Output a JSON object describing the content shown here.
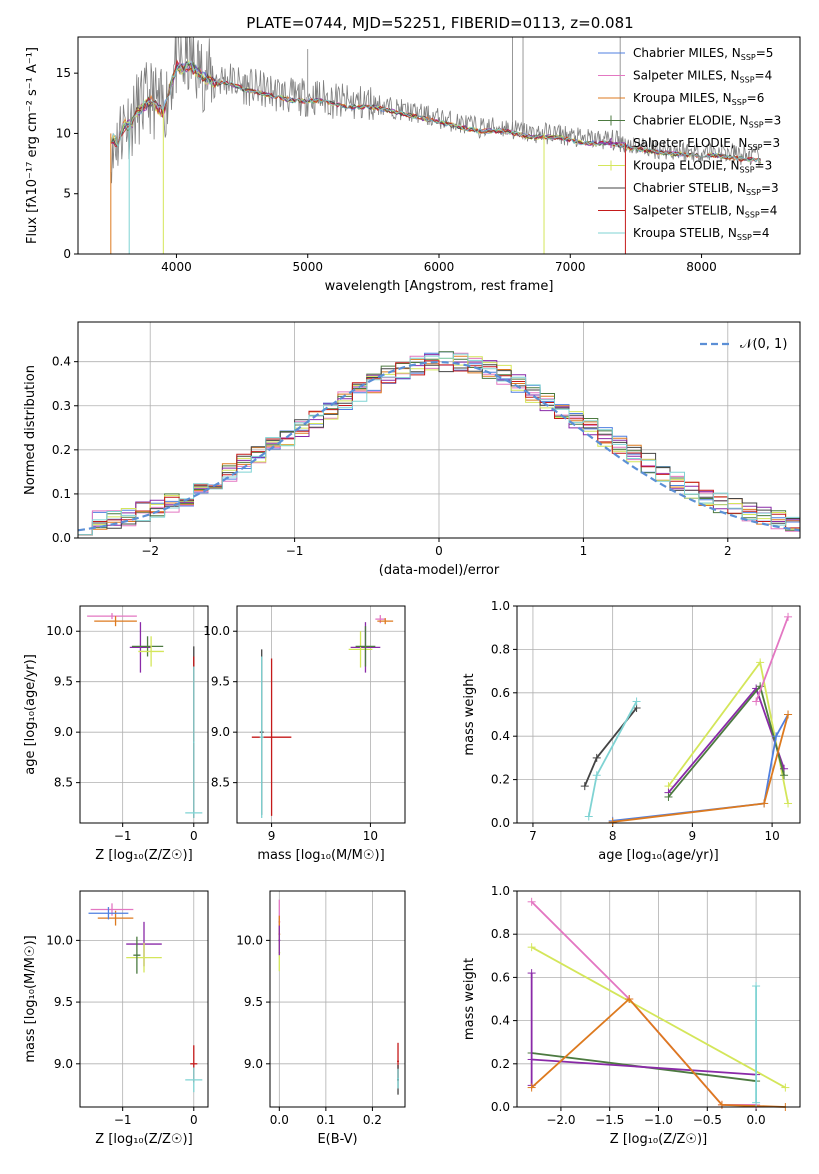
{
  "page": {
    "title": "PLATE=0744, MJD=52251, FIBERID=0113, z=0.081"
  },
  "colors": {
    "chabrier_miles": "#4f7fe0",
    "salpeter_miles": "#e377c2",
    "kroupa_miles": "#dd7a1f",
    "chabrier_elodie": "#4c7a40",
    "salpeter_elodie": "#8a2aa8",
    "kroupa_elodie": "#d4e65a",
    "chabrier_stelib": "#444444",
    "salpeter_stelib": "#c41a1a",
    "kroupa_stelib": "#7fd3d3",
    "data": "#7f7f7f",
    "normal": "#5b8fd6"
  },
  "chart_data": [
    {
      "id": "spectrum",
      "type": "line",
      "title": "PLATE=0744, MJD=52251, FIBERID=0113, z=0.081",
      "xlabel": "wavelength [Angstrom, rest frame]",
      "ylabel": "Flux [fλ10⁻¹⁷ erg cm⁻² s⁻¹ A⁻¹]",
      "xlim": [
        3250,
        8750
      ],
      "ylim": [
        0,
        18
      ],
      "xticks": [
        4000,
        5000,
        6000,
        7000,
        8000
      ],
      "yticks": [
        0,
        5,
        10,
        15
      ],
      "legend_position": "top-right",
      "legend": [
        {
          "label": "Chabrier MILES, N",
          "sub": "SSP",
          "suffix": "=5"
        },
        {
          "label": "Salpeter MILES, N",
          "sub": "SSP",
          "suffix": "=4"
        },
        {
          "label": "Kroupa MILES, N",
          "sub": "SSP",
          "suffix": "=6"
        },
        {
          "label": "Chabrier ELODIE, N",
          "sub": "SSP",
          "suffix": "=3"
        },
        {
          "label": "Salpeter ELODIE, N",
          "sub": "SSP",
          "suffix": "=3"
        },
        {
          "label": "Kroupa ELODIE, N",
          "sub": "SSP",
          "suffix": "=3"
        },
        {
          "label": "Chabrier STELIB, N",
          "sub": "SSP",
          "suffix": "=3"
        },
        {
          "label": "Salpeter STELIB, N",
          "sub": "SSP",
          "suffix": "=4"
        },
        {
          "label": "Kroupa STELIB, N",
          "sub": "SSP",
          "suffix": "=4"
        }
      ],
      "data_curve": {
        "x": [
          3500,
          3550,
          3600,
          3650,
          3700,
          3750,
          3800,
          3850,
          3900,
          3950,
          4000,
          4050,
          4100,
          4200,
          4300,
          4400,
          4500,
          4700,
          4900,
          5100,
          5300,
          5500,
          5700,
          5900,
          6100,
          6300,
          6500,
          6700,
          6900,
          7100,
          7300,
          7500,
          7700,
          7900,
          8100,
          8300,
          8500
        ],
        "y": [
          10,
          9.5,
          11,
          11,
          12,
          12.5,
          13,
          12.5,
          12,
          14,
          16,
          15.5,
          16,
          15,
          14.5,
          14.5,
          14,
          13.5,
          13,
          13,
          12.5,
          12.5,
          12,
          11.5,
          11,
          10.5,
          10.5,
          10,
          10,
          9.5,
          9.5,
          9,
          8.7,
          8.5,
          8.5,
          8.2,
          8
        ]
      }
    },
    {
      "id": "residuals",
      "type": "line",
      "xlabel": "(data-model)/error",
      "ylabel": "Normed distribution",
      "xlim": [
        -2.5,
        2.5
      ],
      "ylim": [
        0,
        0.49
      ],
      "xticks": [
        -2,
        -1,
        0,
        1,
        2
      ],
      "yticks": [
        0.0,
        0.1,
        0.2,
        0.3,
        0.4
      ],
      "legend": [
        "𝒩(0, 1)"
      ],
      "legend_position": "top-right",
      "bin_width": 0.1,
      "series": [
        {
          "name": "Chabrier MILES",
          "values": [
            0.03,
            0.04,
            0.04,
            0.05,
            0.06,
            0.07,
            0.08,
            0.09,
            0.11,
            0.13,
            0.15,
            0.17,
            0.19,
            0.21,
            0.23,
            0.25,
            0.27,
            0.29,
            0.31,
            0.33,
            0.35,
            0.37,
            0.38,
            0.39,
            0.4,
            0.4,
            0.4,
            0.39,
            0.38,
            0.37,
            0.35,
            0.33,
            0.31,
            0.29,
            0.27,
            0.25,
            0.23,
            0.21,
            0.19,
            0.17,
            0.15,
            0.13,
            0.11,
            0.09,
            0.08,
            0.07,
            0.06,
            0.05,
            0.04,
            0.03
          ]
        }
      ]
    },
    {
      "id": "age_vs_z",
      "type": "scatter",
      "xlabel": "Z [log₁₀(Z/Z☉)]",
      "ylabel": "age  [log₁₀(age/yr)]",
      "xlim": [
        -1.6,
        0.2
      ],
      "ylim": [
        8.1,
        10.25
      ],
      "xticks": [
        -1,
        0
      ],
      "yticks": [
        8.5,
        9.0,
        9.5,
        10.0
      ]
    },
    {
      "id": "age_vs_mass",
      "type": "scatter",
      "xlabel": "mass [log₁₀(M/M☉)]",
      "xlim": [
        8.65,
        10.35
      ],
      "ylim": [
        8.1,
        10.25
      ],
      "xticks": [
        9,
        10
      ],
      "yticks": [
        8.5,
        9.0,
        9.5,
        10.0
      ]
    },
    {
      "id": "massweight_vs_age",
      "type": "line",
      "xlabel": "age  [log₁₀(age/yr)]",
      "ylabel": "mass weight",
      "xlim": [
        6.8,
        10.35
      ],
      "ylim": [
        0,
        1
      ],
      "xticks": [
        7,
        8,
        9,
        10
      ],
      "yticks": [
        0.0,
        0.2,
        0.4,
        0.6,
        0.8,
        1.0
      ]
    },
    {
      "id": "mass_vs_z",
      "type": "scatter",
      "xlabel": "Z [log₁₀(Z/Z☉)]",
      "ylabel": "mass [log₁₀(M/M☉)]",
      "xlim": [
        -1.6,
        0.2
      ],
      "ylim": [
        8.65,
        10.4
      ],
      "xticks": [
        -1,
        0
      ],
      "yticks": [
        9.0,
        9.5,
        10.0
      ]
    },
    {
      "id": "mass_vs_ebv",
      "type": "scatter",
      "xlabel": "E(B-V)",
      "xlim": [
        -0.02,
        0.27
      ],
      "ylim": [
        8.65,
        10.4
      ],
      "xticks": [
        0.0,
        0.1,
        0.2
      ],
      "yticks": [
        9.0,
        9.5,
        10.0
      ]
    },
    {
      "id": "massweight_vs_z",
      "type": "line",
      "xlabel": "Z [log₁₀(Z/Z☉)]",
      "ylabel": "mass weight",
      "xlim": [
        -2.45,
        0.45
      ],
      "ylim": [
        0,
        1
      ],
      "xticks": [
        -2.0,
        -1.5,
        -1.0,
        -0.5,
        0.0
      ],
      "yticks": [
        0.0,
        0.2,
        0.4,
        0.6,
        0.8,
        1.0
      ]
    }
  ]
}
